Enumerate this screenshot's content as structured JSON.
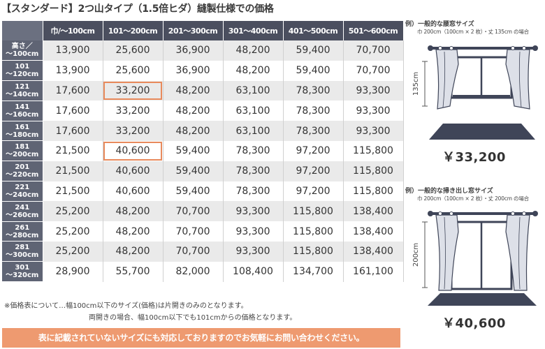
{
  "title": "【スタンダード】2つ山タイプ（1.5倍ヒダ）縫製仕様での価格",
  "table": {
    "columns": [
      "巾/〜100cm",
      "101〜200cm",
      "201〜300cm",
      "301〜400cm",
      "401〜500cm",
      "501〜600cm"
    ],
    "rows": [
      {
        "label": [
          "高さ／",
          "〜100cm"
        ],
        "values": [
          "13,900",
          "25,600",
          "36,900",
          "48,200",
          "59,400",
          "70,700"
        ]
      },
      {
        "label": [
          "101",
          "〜120cm"
        ],
        "values": [
          "13,900",
          "25,600",
          "36,900",
          "48,200",
          "59,400",
          "70,700"
        ]
      },
      {
        "label": [
          "121",
          "〜140cm"
        ],
        "values": [
          "17,600",
          "33,200",
          "48,200",
          "63,100",
          "78,300",
          "93,300"
        ]
      },
      {
        "label": [
          "141",
          "〜160cm"
        ],
        "values": [
          "17,600",
          "33,200",
          "48,200",
          "63,100",
          "78,300",
          "93,300"
        ]
      },
      {
        "label": [
          "161",
          "〜180cm"
        ],
        "values": [
          "17,600",
          "33,200",
          "48,200",
          "63,100",
          "78,300",
          "93,300"
        ]
      },
      {
        "label": [
          "181",
          "〜200cm"
        ],
        "values": [
          "21,500",
          "40,600",
          "59,400",
          "78,300",
          "97,200",
          "115,800"
        ]
      },
      {
        "label": [
          "201",
          "〜220cm"
        ],
        "values": [
          "21,500",
          "40,600",
          "59,400",
          "78,300",
          "97,200",
          "115,800"
        ]
      },
      {
        "label": [
          "221",
          "〜240cm"
        ],
        "values": [
          "21,500",
          "40,600",
          "59,400",
          "78,300",
          "97,200",
          "115,800"
        ]
      },
      {
        "label": [
          "241",
          "〜260cm"
        ],
        "values": [
          "25,200",
          "48,200",
          "70,700",
          "93,300",
          "115,800",
          "138,400"
        ]
      },
      {
        "label": [
          "261",
          "〜280cm"
        ],
        "values": [
          "25,200",
          "48,200",
          "70,700",
          "93,300",
          "115,800",
          "138,400"
        ]
      },
      {
        "label": [
          "281",
          "〜300cm"
        ],
        "values": [
          "25,200",
          "48,200",
          "70,700",
          "93,300",
          "115,800",
          "138,400"
        ]
      },
      {
        "label": [
          "301",
          "〜320cm"
        ],
        "values": [
          "28,900",
          "55,700",
          "82,000",
          "108,400",
          "134,700",
          "161,100"
        ]
      }
    ]
  },
  "notes": {
    "line1": "※価格表について…幅100cm以下のサイズ(価格)は片開きのみのとなります。",
    "line2": "両開きの場合、幅100cm以下でも101cmからの価格となります。"
  },
  "banner": "表に記載されていないサイズにも対応しておりますのでお気軽にお問い合わせください。",
  "example1": {
    "title": "例）一般的な腰窓サイズ",
    "subtitle": "巾 200cm（100cm × 2 枚）・丈 135cm の場合",
    "height_label": "135cm",
    "price": "￥33,200"
  },
  "example2": {
    "title": "例）一般的な掃き出し窓サイズ",
    "subtitle": "巾 200cm（100cm × 2 枚）・丈 200cm の場合",
    "height_label": "200cm",
    "price": "￥40,600"
  },
  "colors": {
    "header": "#4b4f5f",
    "row_label": "#5f6474",
    "highlight": "#e88a5c",
    "banner": "#ee9a70",
    "curtain": "#dde0e8",
    "floor": "#3f4558"
  }
}
